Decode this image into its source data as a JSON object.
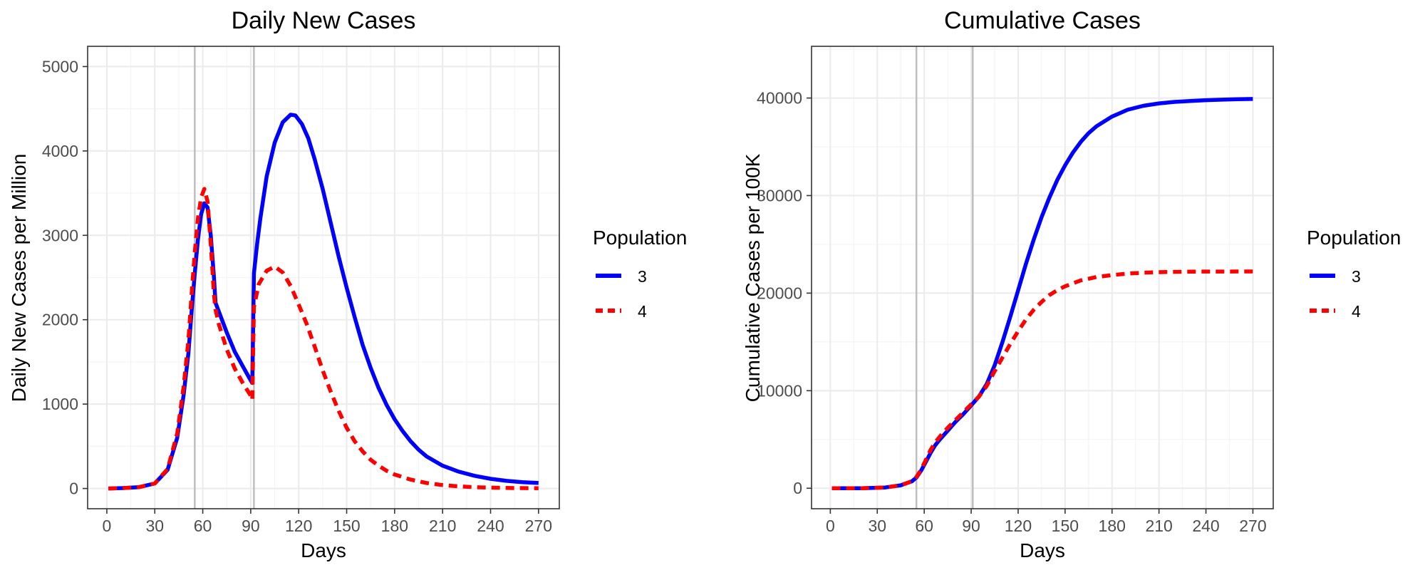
{
  "legend_title": "Population",
  "chart_data": [
    {
      "type": "line",
      "title": "Daily New Cases",
      "xlabel": "Days",
      "ylabel": "Daily New Cases per Million",
      "xlim": [
        -12,
        283
      ],
      "ylim": [
        -240,
        5240
      ],
      "xticks": [
        0,
        30,
        60,
        90,
        120,
        150,
        180,
        210,
        240,
        270
      ],
      "yticks": [
        0,
        1000,
        2000,
        3000,
        4000,
        5000
      ],
      "grid": true,
      "legend_position": "right",
      "vlines": [
        55,
        92
      ],
      "series": [
        {
          "name": "3",
          "color": "#0000ff",
          "dash": "solid",
          "points": [
            [
              1,
              0
            ],
            [
              10,
              5
            ],
            [
              20,
              15
            ],
            [
              30,
              60
            ],
            [
              38,
              220
            ],
            [
              44,
              600
            ],
            [
              48,
              1100
            ],
            [
              51,
              1600
            ],
            [
              53,
              2100
            ],
            [
              55,
              2550
            ],
            [
              57,
              2950
            ],
            [
              59,
              3250
            ],
            [
              61,
              3380
            ],
            [
              63,
              3330
            ],
            [
              65,
              3000
            ],
            [
              67,
              2500
            ],
            [
              68,
              2200
            ],
            [
              70,
              2100
            ],
            [
              75,
              1850
            ],
            [
              80,
              1620
            ],
            [
              85,
              1450
            ],
            [
              90,
              1280
            ],
            [
              91,
              1250
            ],
            [
              92,
              2550
            ],
            [
              94,
              2900
            ],
            [
              96,
              3200
            ],
            [
              100,
              3700
            ],
            [
              105,
              4100
            ],
            [
              110,
              4340
            ],
            [
              115,
              4430
            ],
            [
              118,
              4420
            ],
            [
              122,
              4320
            ],
            [
              126,
              4150
            ],
            [
              130,
              3900
            ],
            [
              135,
              3550
            ],
            [
              140,
              3150
            ],
            [
              145,
              2750
            ],
            [
              150,
              2380
            ],
            [
              155,
              2030
            ],
            [
              160,
              1700
            ],
            [
              165,
              1430
            ],
            [
              170,
              1190
            ],
            [
              175,
              990
            ],
            [
              180,
              820
            ],
            [
              185,
              680
            ],
            [
              190,
              560
            ],
            [
              195,
              460
            ],
            [
              200,
              380
            ],
            [
              210,
              270
            ],
            [
              220,
              200
            ],
            [
              230,
              150
            ],
            [
              240,
              115
            ],
            [
              250,
              90
            ],
            [
              260,
              75
            ],
            [
              270,
              65
            ]
          ]
        },
        {
          "name": "4",
          "color": "#ff0000",
          "dash": "dashed",
          "points": [
            [
              1,
              0
            ],
            [
              10,
              5
            ],
            [
              20,
              15
            ],
            [
              30,
              60
            ],
            [
              38,
              230
            ],
            [
              44,
              650
            ],
            [
              48,
              1200
            ],
            [
              51,
              1750
            ],
            [
              53,
              2300
            ],
            [
              55,
              2800
            ],
            [
              57,
              3200
            ],
            [
              59,
              3450
            ],
            [
              61,
              3550
            ],
            [
              63,
              3400
            ],
            [
              65,
              2900
            ],
            [
              67,
              2300
            ],
            [
              68,
              2120
            ],
            [
              70,
              1950
            ],
            [
              75,
              1650
            ],
            [
              80,
              1420
            ],
            [
              85,
              1250
            ],
            [
              90,
              1100
            ],
            [
              91,
              1050
            ],
            [
              92,
              2150
            ],
            [
              95,
              2420
            ],
            [
              100,
              2580
            ],
            [
              105,
              2630
            ],
            [
              110,
              2560
            ],
            [
              115,
              2400
            ],
            [
              120,
              2180
            ],
            [
              125,
              1950
            ],
            [
              130,
              1680
            ],
            [
              135,
              1400
            ],
            [
              140,
              1150
            ],
            [
              145,
              920
            ],
            [
              150,
              720
            ],
            [
              155,
              560
            ],
            [
              160,
              440
            ],
            [
              165,
              340
            ],
            [
              170,
              270
            ],
            [
              175,
              210
            ],
            [
              180,
              165
            ],
            [
              190,
              105
            ],
            [
              200,
              65
            ],
            [
              210,
              40
            ],
            [
              220,
              25
            ],
            [
              230,
              15
            ],
            [
              240,
              10
            ],
            [
              255,
              5
            ],
            [
              270,
              3
            ]
          ]
        }
      ]
    },
    {
      "type": "line",
      "title": "Cumulative Cases",
      "xlabel": "Days",
      "ylabel": "Cumulative Cases per 100K",
      "xlim": [
        -12,
        283
      ],
      "ylim": [
        -2100,
        45300
      ],
      "xticks": [
        0,
        30,
        60,
        90,
        120,
        150,
        180,
        210,
        240,
        270
      ],
      "yticks": [
        0,
        10000,
        20000,
        30000,
        40000
      ],
      "grid": true,
      "legend_position": "right",
      "vlines": [
        55,
        91
      ],
      "series": [
        {
          "name": "3",
          "color": "#0000ff",
          "dash": "solid",
          "points": [
            [
              1,
              0
            ],
            [
              20,
              0
            ],
            [
              35,
              80
            ],
            [
              45,
              300
            ],
            [
              52,
              700
            ],
            [
              55,
              1100
            ],
            [
              58,
              1800
            ],
            [
              61,
              2700
            ],
            [
              64,
              3600
            ],
            [
              67,
              4400
            ],
            [
              70,
              5000
            ],
            [
              75,
              5900
            ],
            [
              80,
              6800
            ],
            [
              85,
              7600
            ],
            [
              90,
              8500
            ],
            [
              95,
              9400
            ],
            [
              100,
              10700
            ],
            [
              105,
              12600
            ],
            [
              110,
              15000
            ],
            [
              115,
              17600
            ],
            [
              120,
              20300
            ],
            [
              125,
              23000
            ],
            [
              130,
              25500
            ],
            [
              135,
              27800
            ],
            [
              140,
              29800
            ],
            [
              145,
              31600
            ],
            [
              150,
              33100
            ],
            [
              155,
              34400
            ],
            [
              160,
              35500
            ],
            [
              165,
              36400
            ],
            [
              170,
              37100
            ],
            [
              180,
              38100
            ],
            [
              190,
              38800
            ],
            [
              200,
              39200
            ],
            [
              210,
              39450
            ],
            [
              220,
              39600
            ],
            [
              230,
              39700
            ],
            [
              240,
              39780
            ],
            [
              250,
              39830
            ],
            [
              260,
              39870
            ],
            [
              270,
              39900
            ]
          ]
        },
        {
          "name": "4",
          "color": "#ff0000",
          "dash": "dashed",
          "points": [
            [
              1,
              0
            ],
            [
              20,
              0
            ],
            [
              35,
              80
            ],
            [
              45,
              300
            ],
            [
              52,
              720
            ],
            [
              55,
              1150
            ],
            [
              58,
              1900
            ],
            [
              61,
              2900
            ],
            [
              64,
              3900
            ],
            [
              67,
              4700
            ],
            [
              70,
              5300
            ],
            [
              75,
              6200
            ],
            [
              80,
              7000
            ],
            [
              85,
              7800
            ],
            [
              90,
              8600
            ],
            [
              95,
              9400
            ],
            [
              100,
              10500
            ],
            [
              105,
              12000
            ],
            [
              110,
              13400
            ],
            [
              115,
              14800
            ],
            [
              120,
              16100
            ],
            [
              125,
              17300
            ],
            [
              130,
              18300
            ],
            [
              135,
              19100
            ],
            [
              140,
              19800
            ],
            [
              145,
              20300
            ],
            [
              150,
              20700
            ],
            [
              160,
              21300
            ],
            [
              170,
              21650
            ],
            [
              180,
              21850
            ],
            [
              190,
              22000
            ],
            [
              200,
              22100
            ],
            [
              210,
              22150
            ],
            [
              220,
              22180
            ],
            [
              230,
              22200
            ],
            [
              240,
              22210
            ],
            [
              250,
              22215
            ],
            [
              270,
              22220
            ]
          ]
        }
      ]
    }
  ]
}
